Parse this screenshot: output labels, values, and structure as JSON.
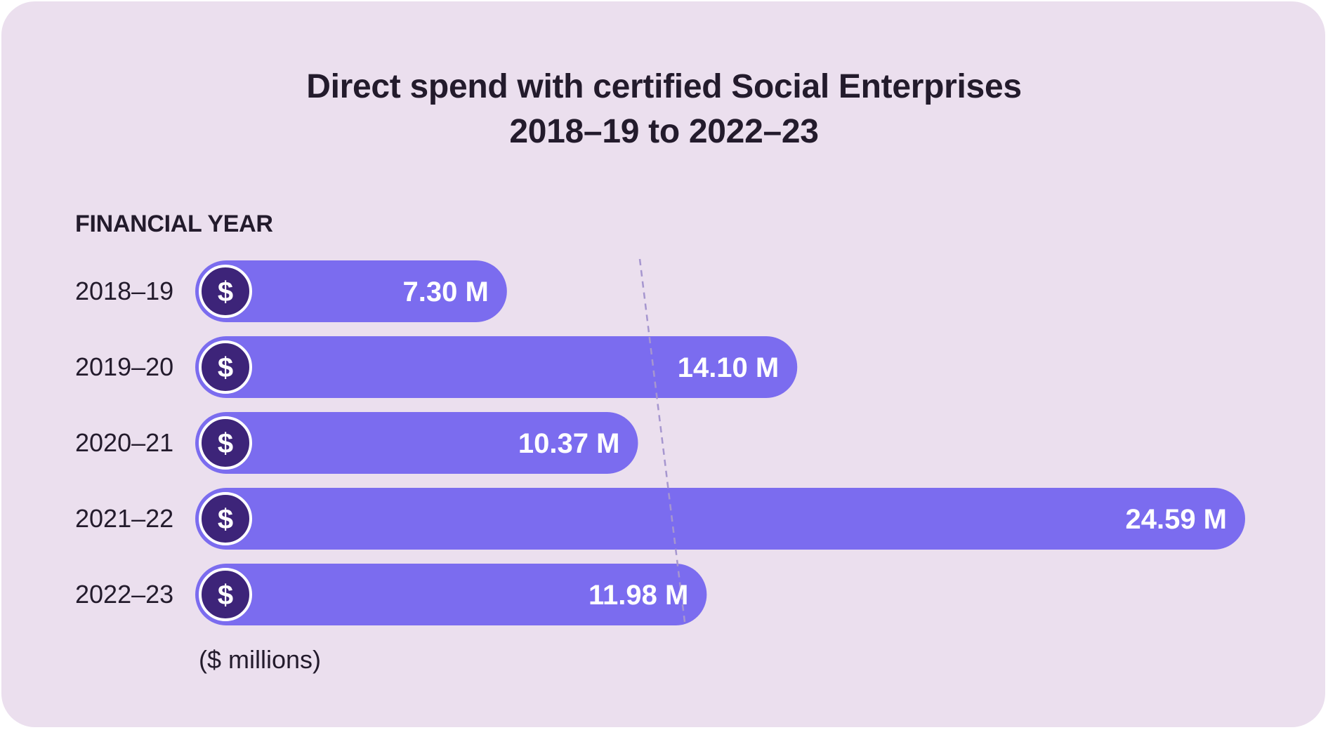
{
  "chart_data": {
    "type": "bar",
    "orientation": "horizontal",
    "title": "Direct spend with certified Social Enterprises",
    "subtitle": "2018–19 to 2022–23",
    "ylabel": "FINANCIAL YEAR",
    "xlabel": "($ millions)",
    "categories": [
      "2018–19",
      "2019–20",
      "2020–21",
      "2021–22",
      "2022–23"
    ],
    "values": [
      7.3,
      14.1,
      10.37,
      24.59,
      11.98
    ],
    "value_labels": [
      "7.30 M",
      "14.10 M",
      "10.37 M",
      "24.59 M",
      "11.98 M"
    ],
    "marker_icon": "dollar-icon",
    "average_line": "dashed",
    "colors": {
      "background": "#ebdfee",
      "bar": "#7b6cef",
      "icon_circle": "#3d2479",
      "icon_ring": "#ffffff",
      "text": "#231b2c",
      "value_text": "#ffffff",
      "dashed_line": "#a696cf"
    }
  }
}
